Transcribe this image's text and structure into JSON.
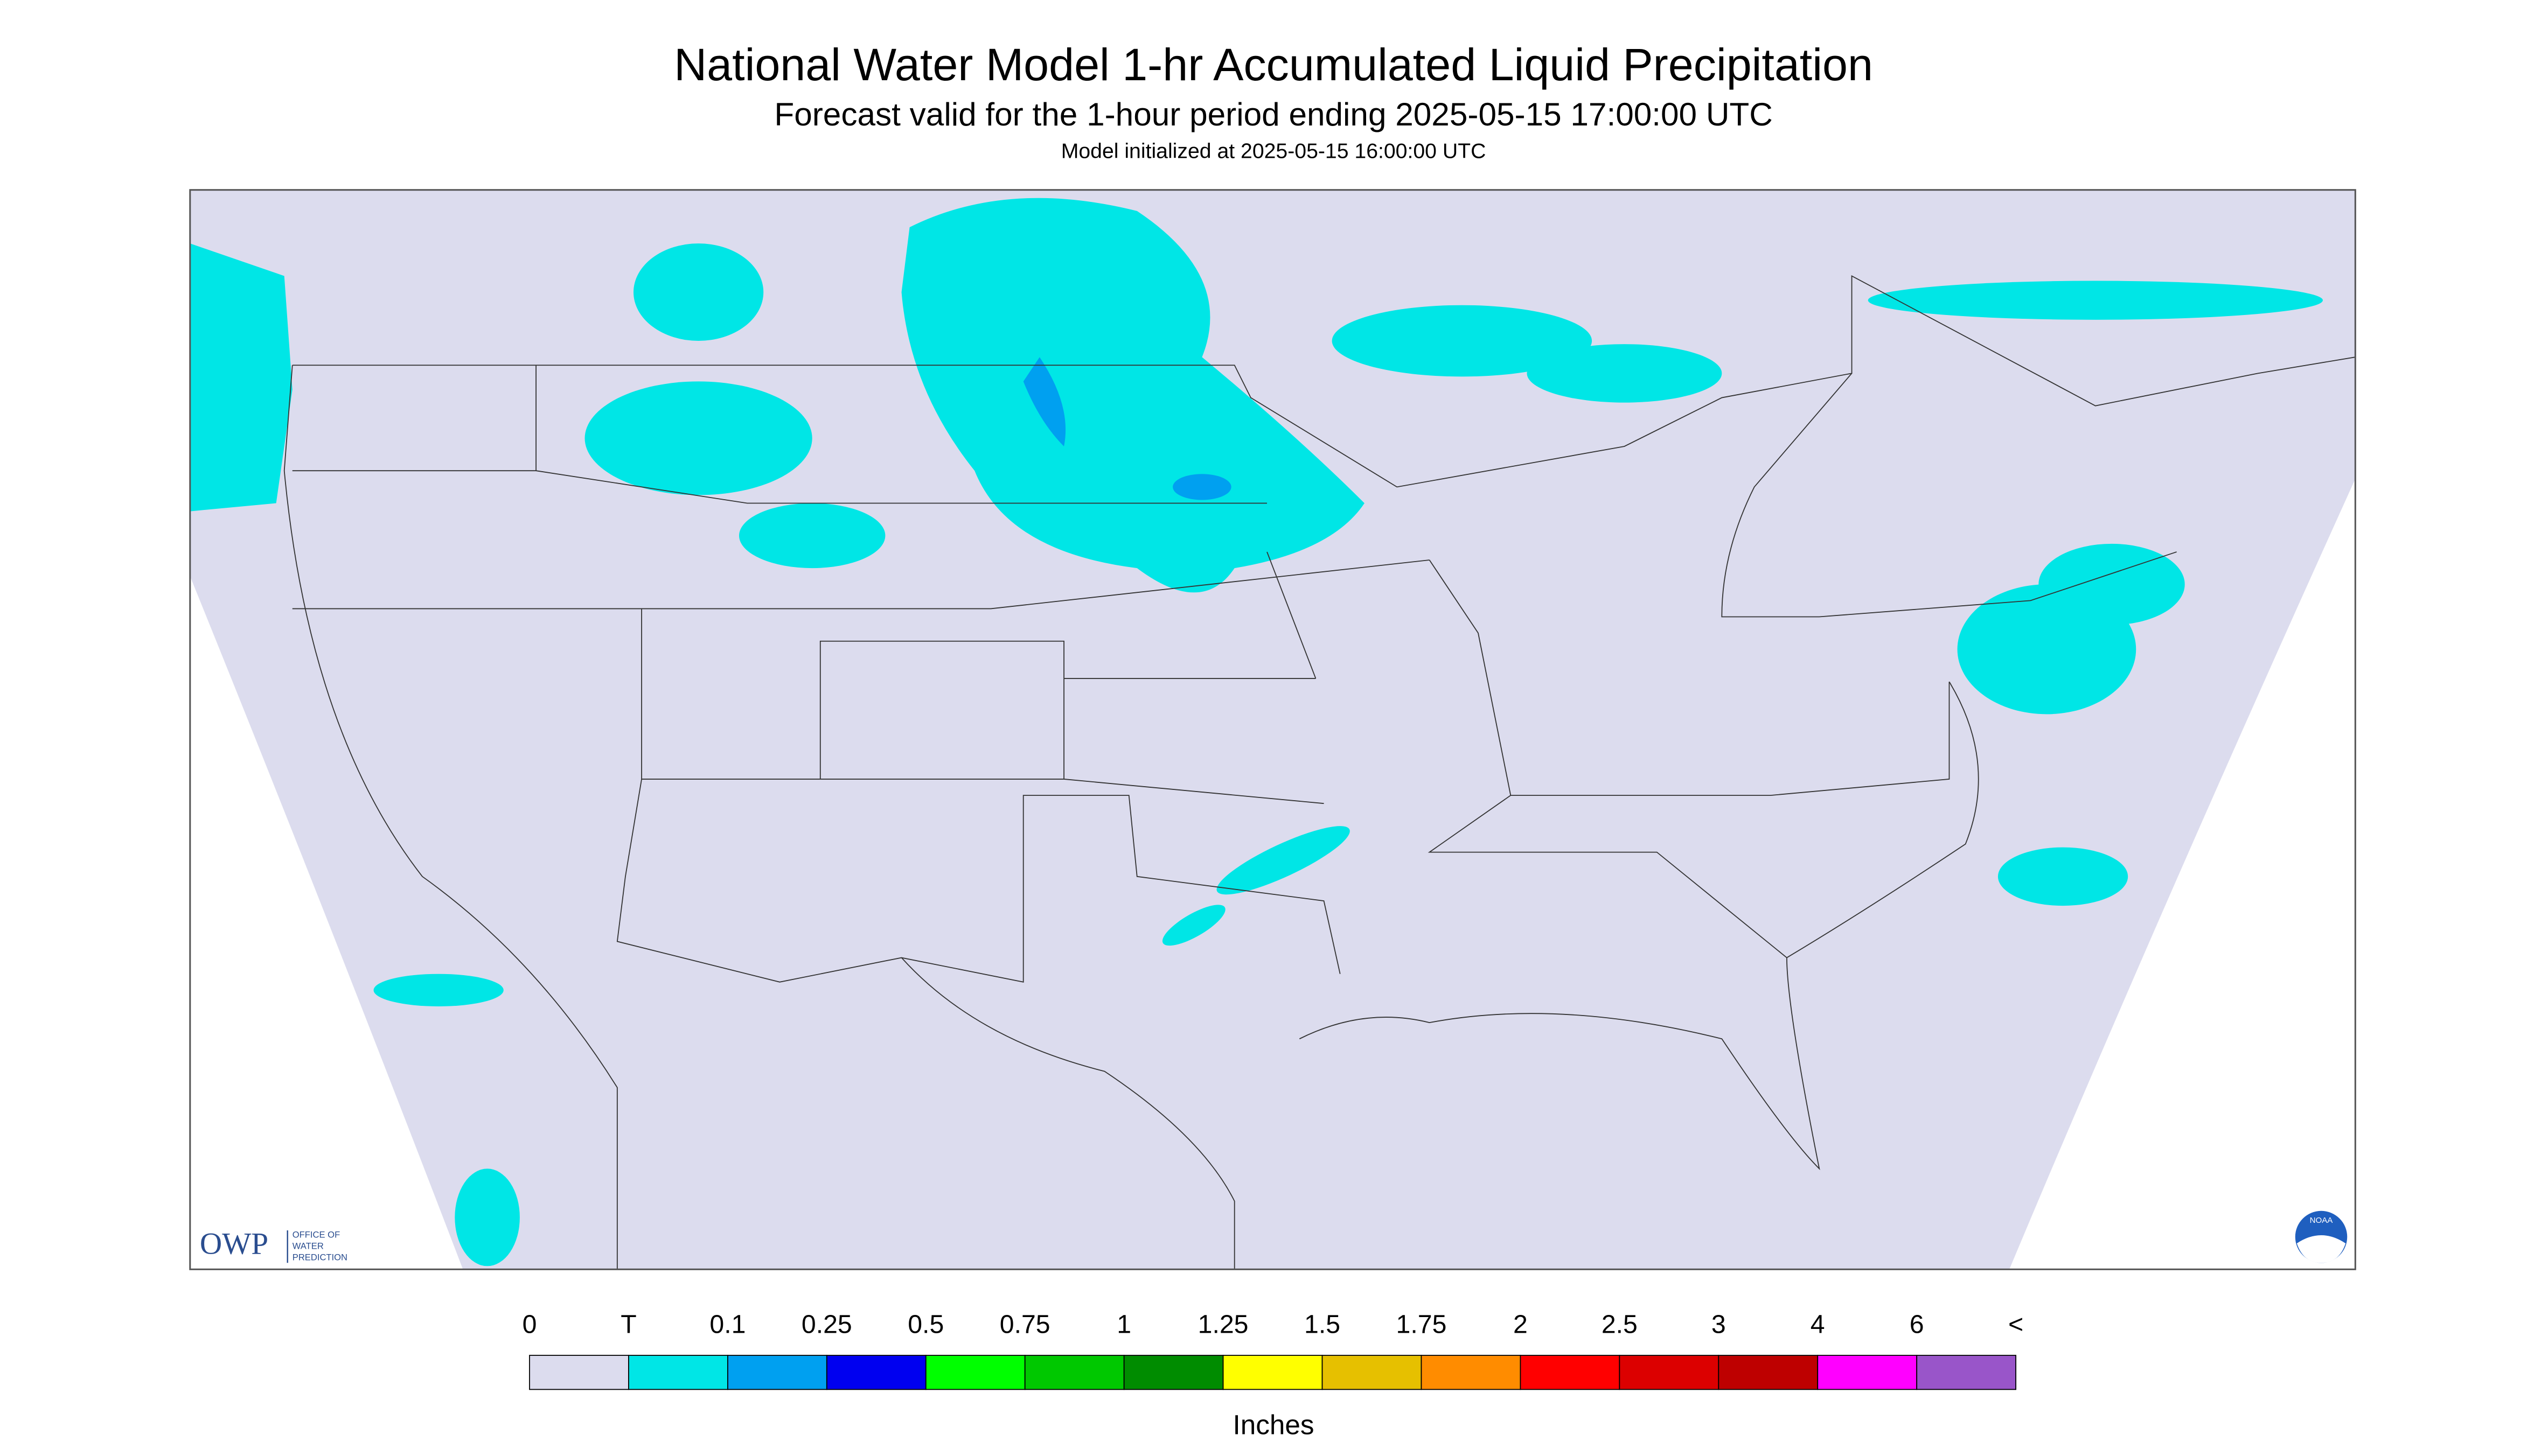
{
  "header": {
    "title": "National Water Model 1-hr Accumulated Liquid Precipitation",
    "subtitle": "Forecast valid for the 1-hour period ending 2025-05-15 17:00:00 UTC",
    "initialized": "Model initialized at 2025-05-15 16:00:00 UTC"
  },
  "logo": {
    "acronym": "OWP",
    "line1": "OFFICE OF",
    "line2": "WATER",
    "line3": "PREDICTION",
    "noaa": "NOAA"
  },
  "legend": {
    "unit": "Inches",
    "labels": [
      "0",
      "T",
      "0.1",
      "0.25",
      "0.5",
      "0.75",
      "1",
      "1.25",
      "1.5",
      "1.75",
      "2",
      "2.5",
      "3",
      "4",
      "6",
      "<"
    ],
    "colors": [
      "#dcdcee",
      "#00e6e6",
      "#00a0f0",
      "#0000f0",
      "#00ff00",
      "#00c800",
      "#008c00",
      "#ffff00",
      "#e6c000",
      "#ff8c00",
      "#ff0000",
      "#dc0000",
      "#be0000",
      "#ff00ff",
      "#9955c9"
    ]
  }
}
